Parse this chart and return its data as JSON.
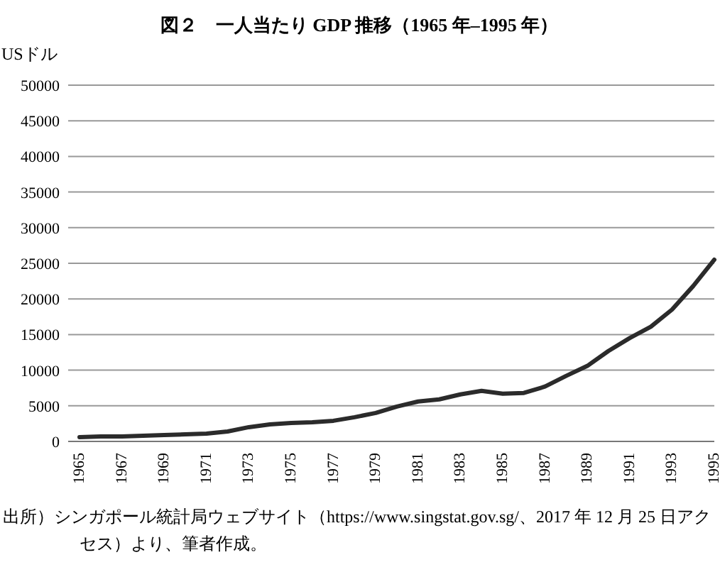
{
  "chart_data": {
    "type": "line",
    "title": "図２　一人当たり GDP 推移（1965 年–1995 年）",
    "ylabel": "USドル",
    "categories": [
      "1965",
      null,
      "1967",
      null,
      "1969",
      null,
      "1971",
      null,
      "1973",
      null,
      "1975",
      null,
      "1977",
      null,
      "1979",
      null,
      "1981",
      null,
      "1983",
      null,
      "1985",
      null,
      "1987",
      null,
      "1989",
      null,
      "1991",
      null,
      "1993",
      null,
      "1995"
    ],
    "series": [
      {
        "color": "#2b2b2b",
        "values": [
          600,
          700,
          700,
          800,
          900,
          1000,
          1100,
          1400,
          2000,
          2400,
          2600,
          2700,
          2900,
          3400,
          4000,
          4900,
          5600,
          5900,
          6600,
          7100,
          6700,
          6800,
          7700,
          9200,
          10600,
          12700,
          14500,
          16100,
          18500,
          21800,
          25500
        ]
      }
    ],
    "ylim": [
      0,
      50000
    ],
    "yticks": [
      0,
      5000,
      10000,
      15000,
      20000,
      25000,
      30000,
      35000,
      40000,
      45000,
      50000
    ],
    "grid": "y",
    "marker": "none",
    "line_style": "solid",
    "annotations": [
      "出所）シンガポール統計局ウェブサイト（https://www.singstat.gov.sg/、2017 年 12 月 25 日アクセス）より、筆者作成。"
    ]
  }
}
